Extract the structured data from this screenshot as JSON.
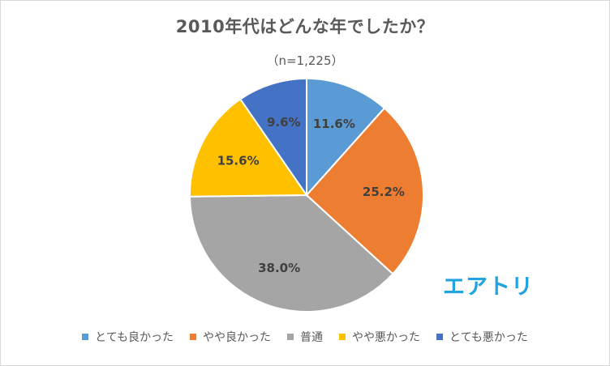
{
  "chart_data": {
    "type": "pie",
    "title": "2010年代はどんな年でしたか？",
    "subtitle": "（n=1,225）",
    "categories": [
      "とても良かった",
      "やや良かった",
      "普通",
      "やや悪かった",
      "とても悪かった"
    ],
    "values": [
      11.6,
      25.2,
      38.0,
      15.6,
      9.6
    ],
    "labels": [
      "11.6%",
      "25.2%",
      "38.0%",
      "15.6%",
      "9.6%"
    ],
    "colors": [
      "#5b9bd5",
      "#ed7d31",
      "#a5a5a5",
      "#ffc000",
      "#4472c4"
    ],
    "legend_position": "bottom",
    "start": "12 o'clock, clockwise"
  },
  "logo_text": "エアトリ"
}
